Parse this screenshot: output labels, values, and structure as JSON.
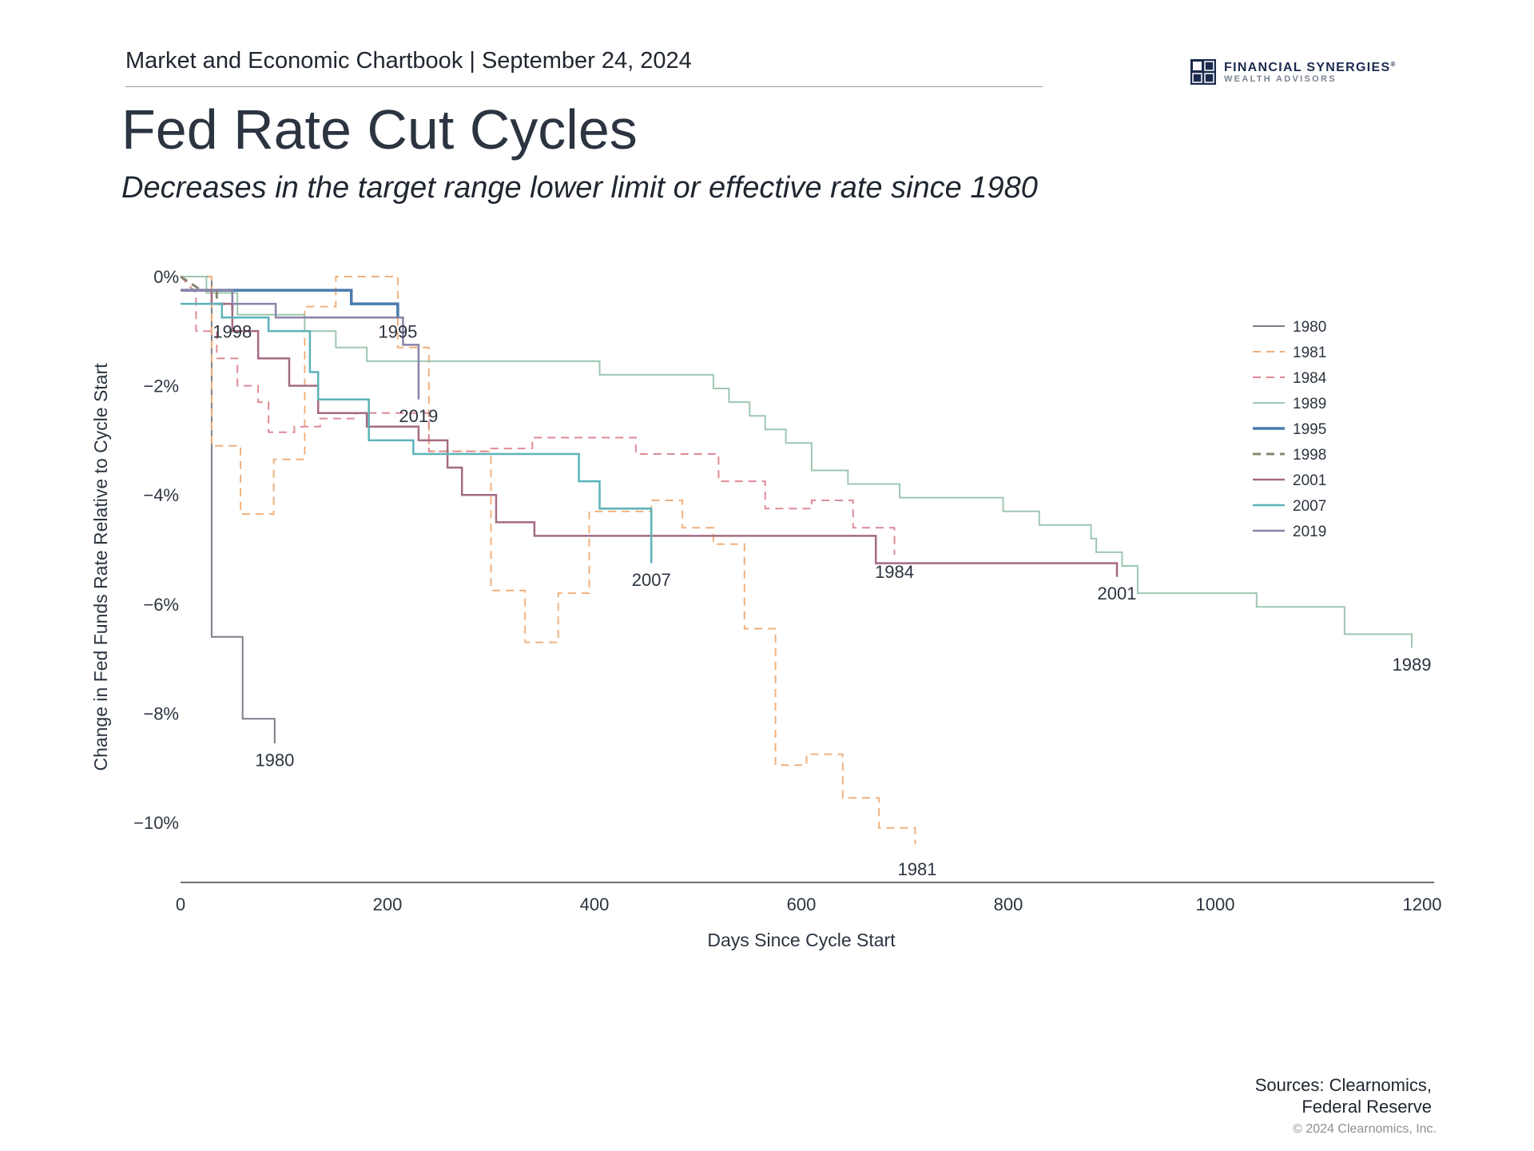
{
  "header": {
    "chartbook_title": "Market and Economic Chartbook | September 24, 2024"
  },
  "logo": {
    "name": "FINANCIAL SYNERGIES",
    "registered": "®",
    "subtitle": "WEALTH ADVISORS",
    "icon": "four-square-grid-logo",
    "color": "#1b2a4e"
  },
  "title": "Fed Rate Cut Cycles",
  "subtitle": "Decreases in the target range lower limit or effective rate since 1980",
  "chart_data": {
    "type": "line",
    "step": true,
    "xlabel": "Days Since Cycle Start",
    "ylabel": "Change in Fed Funds Rate Relative to Cycle Start",
    "xlim": [
      0,
      1200
    ],
    "ylim": [
      -11.2,
      0.2
    ],
    "xticks": [
      {
        "value": 0,
        "label": "0"
      },
      {
        "value": 200,
        "label": "200"
      },
      {
        "value": 400,
        "label": "400"
      },
      {
        "value": 600,
        "label": "600"
      },
      {
        "value": 800,
        "label": "800"
      },
      {
        "value": 1000,
        "label": "1000"
      },
      {
        "value": 1200,
        "label": "1200"
      }
    ],
    "yticks": [
      {
        "value": 0,
        "label": "0%"
      },
      {
        "value": -2,
        "label": "−2%"
      },
      {
        "value": -4,
        "label": "−4%"
      },
      {
        "value": -6,
        "label": "−6%"
      },
      {
        "value": -8,
        "label": "−8%"
      },
      {
        "value": -10,
        "label": "−10%"
      }
    ],
    "legend_position": "right",
    "series": [
      {
        "name": "1980",
        "color": "#7a7f88",
        "dash": "solid",
        "width": 2,
        "points": [
          [
            0,
            0
          ],
          [
            30,
            0
          ],
          [
            30,
            -6.6
          ],
          [
            60,
            -6.6
          ],
          [
            60,
            -8.1
          ],
          [
            91,
            -8.1
          ],
          [
            91,
            -8.55
          ]
        ],
        "label": {
          "text": "1980",
          "x": 91,
          "y": -8.85
        }
      },
      {
        "name": "1981",
        "color": "#f0b07c",
        "dash": "dashed",
        "width": 2,
        "points": [
          [
            0,
            0
          ],
          [
            30,
            0
          ],
          [
            30,
            -3.1
          ],
          [
            58,
            -3.1
          ],
          [
            58,
            -4.35
          ],
          [
            90,
            -4.35
          ],
          [
            90,
            -3.35
          ],
          [
            120,
            -3.35
          ],
          [
            120,
            -0.55
          ],
          [
            150,
            -0.55
          ],
          [
            150,
            0
          ],
          [
            210,
            0
          ],
          [
            210,
            -1.3
          ],
          [
            240,
            -1.3
          ],
          [
            240,
            -3.2
          ],
          [
            300,
            -3.2
          ],
          [
            300,
            -5.75
          ],
          [
            333,
            -5.75
          ],
          [
            333,
            -6.7
          ],
          [
            365,
            -6.7
          ],
          [
            365,
            -5.8
          ],
          [
            395,
            -5.8
          ],
          [
            395,
            -4.3
          ],
          [
            455,
            -4.3
          ],
          [
            455,
            -4.1
          ],
          [
            485,
            -4.1
          ],
          [
            485,
            -4.6
          ],
          [
            515,
            -4.6
          ],
          [
            515,
            -4.9
          ],
          [
            545,
            -4.9
          ],
          [
            545,
            -6.45
          ],
          [
            575,
            -6.45
          ],
          [
            575,
            -8.95
          ],
          [
            605,
            -8.95
          ],
          [
            605,
            -8.75
          ],
          [
            640,
            -8.75
          ],
          [
            640,
            -9.55
          ],
          [
            675,
            -9.55
          ],
          [
            675,
            -10.1
          ],
          [
            710,
            -10.1
          ],
          [
            710,
            -10.4
          ]
        ],
        "label": {
          "text": "1981",
          "x": 712,
          "y": -10.85
        }
      },
      {
        "name": "1984",
        "color": "#de8a96",
        "dash": "dashed",
        "width": 2,
        "points": [
          [
            0,
            0
          ],
          [
            15,
            -0.3
          ],
          [
            15,
            -1.0
          ],
          [
            35,
            -1.0
          ],
          [
            35,
            -1.5
          ],
          [
            55,
            -1.5
          ],
          [
            55,
            -2.0
          ],
          [
            75,
            -2.0
          ],
          [
            75,
            -2.3
          ],
          [
            85,
            -2.3
          ],
          [
            85,
            -2.85
          ],
          [
            110,
            -2.85
          ],
          [
            110,
            -2.75
          ],
          [
            135,
            -2.75
          ],
          [
            135,
            -2.6
          ],
          [
            170,
            -2.6
          ],
          [
            170,
            -2.5
          ],
          [
            240,
            -2.5
          ],
          [
            240,
            -3.2
          ],
          [
            300,
            -3.2
          ],
          [
            300,
            -3.15
          ],
          [
            340,
            -3.15
          ],
          [
            340,
            -2.95
          ],
          [
            440,
            -2.95
          ],
          [
            440,
            -3.25
          ],
          [
            520,
            -3.25
          ],
          [
            520,
            -3.75
          ],
          [
            565,
            -3.75
          ],
          [
            565,
            -4.25
          ],
          [
            610,
            -4.25
          ],
          [
            610,
            -4.1
          ],
          [
            650,
            -4.1
          ],
          [
            650,
            -4.6
          ],
          [
            690,
            -4.6
          ],
          [
            690,
            -5.1
          ]
        ],
        "label": {
          "text": "1984",
          "x": 690,
          "y": -5.4
        }
      },
      {
        "name": "1989",
        "color": "#9ec7b0",
        "dash": "solid",
        "width": 2,
        "points": [
          [
            0,
            0
          ],
          [
            25,
            0
          ],
          [
            25,
            -0.3
          ],
          [
            55,
            -0.3
          ],
          [
            55,
            -0.7
          ],
          [
            120,
            -0.7
          ],
          [
            120,
            -1.0
          ],
          [
            150,
            -1.0
          ],
          [
            150,
            -1.3
          ],
          [
            180,
            -1.3
          ],
          [
            180,
            -1.55
          ],
          [
            405,
            -1.55
          ],
          [
            405,
            -1.8
          ],
          [
            515,
            -1.8
          ],
          [
            515,
            -2.05
          ],
          [
            530,
            -2.05
          ],
          [
            530,
            -2.3
          ],
          [
            550,
            -2.3
          ],
          [
            550,
            -2.55
          ],
          [
            565,
            -2.55
          ],
          [
            565,
            -2.8
          ],
          [
            585,
            -2.8
          ],
          [
            585,
            -3.05
          ],
          [
            610,
            -3.05
          ],
          [
            610,
            -3.55
          ],
          [
            645,
            -3.55
          ],
          [
            645,
            -3.8
          ],
          [
            695,
            -3.8
          ],
          [
            695,
            -4.05
          ],
          [
            795,
            -4.05
          ],
          [
            795,
            -4.3
          ],
          [
            830,
            -4.3
          ],
          [
            830,
            -4.55
          ],
          [
            880,
            -4.55
          ],
          [
            880,
            -4.8
          ],
          [
            885,
            -4.8
          ],
          [
            885,
            -5.05
          ],
          [
            910,
            -5.05
          ],
          [
            910,
            -5.3
          ],
          [
            925,
            -5.3
          ],
          [
            925,
            -5.8
          ],
          [
            1040,
            -5.8
          ],
          [
            1040,
            -6.05
          ],
          [
            1125,
            -6.05
          ],
          [
            1125,
            -6.55
          ],
          [
            1190,
            -6.55
          ],
          [
            1190,
            -6.8
          ]
        ],
        "label": {
          "text": "1989",
          "x": 1190,
          "y": -7.1
        }
      },
      {
        "name": "1995",
        "color": "#4a7bad",
        "dash": "solid",
        "width": 3.5,
        "points": [
          [
            0,
            -0.25
          ],
          [
            165,
            -0.25
          ],
          [
            165,
            -0.5
          ],
          [
            210,
            -0.5
          ],
          [
            210,
            -0.75
          ]
        ],
        "label": {
          "text": "1995",
          "x": 210,
          "y": -1.0
        }
      },
      {
        "name": "1998",
        "color": "#8a8570",
        "dash": "dashed",
        "width": 3,
        "points": [
          [
            0,
            0
          ],
          [
            20,
            -0.25
          ],
          [
            35,
            -0.25
          ],
          [
            35,
            -0.5
          ],
          [
            50,
            -0.5
          ],
          [
            50,
            -0.75
          ]
        ],
        "label": {
          "text": "1998",
          "x": 50,
          "y": -1.0
        }
      },
      {
        "name": "2001",
        "color": "#a56a84",
        "dash": "solid",
        "width": 2.5,
        "points": [
          [
            0,
            -0.25
          ],
          [
            30,
            -0.25
          ],
          [
            30,
            -0.5
          ],
          [
            50,
            -0.5
          ],
          [
            50,
            -1.0
          ],
          [
            75,
            -1.0
          ],
          [
            75,
            -1.5
          ],
          [
            105,
            -1.5
          ],
          [
            105,
            -2.0
          ],
          [
            133,
            -2.0
          ],
          [
            133,
            -2.5
          ],
          [
            180,
            -2.5
          ],
          [
            180,
            -2.75
          ],
          [
            230,
            -2.75
          ],
          [
            230,
            -3.0
          ],
          [
            258,
            -3.0
          ],
          [
            258,
            -3.5
          ],
          [
            272,
            -3.5
          ],
          [
            272,
            -4.0
          ],
          [
            305,
            -4.0
          ],
          [
            305,
            -4.5
          ],
          [
            342,
            -4.5
          ],
          [
            342,
            -4.75
          ],
          [
            672,
            -4.75
          ],
          [
            672,
            -5.25
          ],
          [
            905,
            -5.25
          ],
          [
            905,
            -5.5
          ]
        ],
        "label": {
          "text": "2001",
          "x": 905,
          "y": -5.8
        }
      },
      {
        "name": "2007",
        "color": "#5bb3b8",
        "dash": "solid",
        "width": 2.5,
        "points": [
          [
            0,
            -0.5
          ],
          [
            40,
            -0.5
          ],
          [
            40,
            -0.75
          ],
          [
            85,
            -0.75
          ],
          [
            85,
            -1.0
          ],
          [
            125,
            -1.0
          ],
          [
            125,
            -1.75
          ],
          [
            133,
            -1.75
          ],
          [
            133,
            -2.25
          ],
          [
            182,
            -2.25
          ],
          [
            182,
            -3.0
          ],
          [
            225,
            -3.0
          ],
          [
            225,
            -3.25
          ],
          [
            385,
            -3.25
          ],
          [
            385,
            -3.75
          ],
          [
            405,
            -3.75
          ],
          [
            405,
            -4.25
          ],
          [
            455,
            -4.25
          ],
          [
            455,
            -5.25
          ]
        ],
        "label": {
          "text": "2007",
          "x": 455,
          "y": -5.55
        }
      },
      {
        "name": "2019",
        "color": "#8b82a8",
        "dash": "solid",
        "width": 2.5,
        "points": [
          [
            0,
            -0.25
          ],
          [
            50,
            -0.25
          ],
          [
            50,
            -0.5
          ],
          [
            92,
            -0.5
          ],
          [
            92,
            -0.75
          ],
          [
            215,
            -0.75
          ],
          [
            215,
            -1.25
          ],
          [
            230,
            -1.25
          ],
          [
            230,
            -2.25
          ]
        ],
        "label": {
          "text": "2019",
          "x": 230,
          "y": -2.55
        }
      }
    ]
  },
  "footer": {
    "sources_line1": "Sources: Clearnomics,",
    "sources_line2": "Federal Reserve",
    "copyright": "© 2024 Clearnomics, Inc."
  }
}
